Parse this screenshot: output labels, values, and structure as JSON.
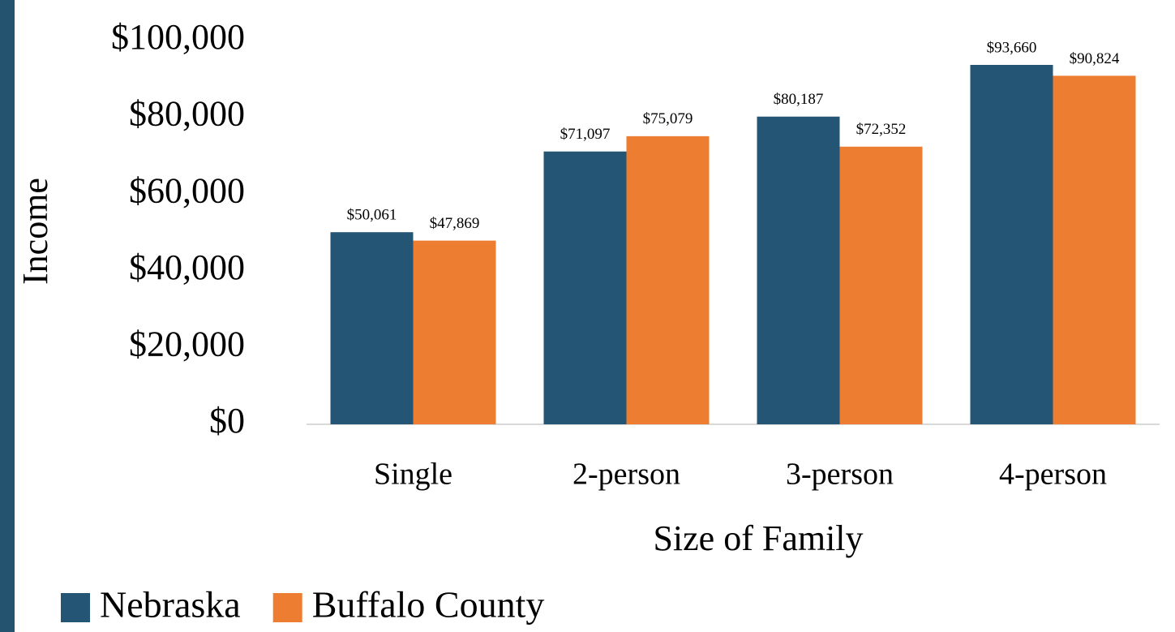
{
  "chart_data": {
    "type": "bar",
    "x_label": "Size of Family",
    "y_label": "Income",
    "categories": [
      "Single",
      "2-person",
      "3-person",
      "4-person"
    ],
    "series": [
      {
        "name": "Nebraska",
        "color": "#255574",
        "values": [
          50061,
          71097,
          80187,
          93660
        ],
        "value_labels": [
          "$50,061",
          "$71,097",
          "$80,187",
          "$93,660"
        ]
      },
      {
        "name": "Buffalo County",
        "color": "#ed7d31",
        "values": [
          47869,
          75079,
          72352,
          90824
        ],
        "value_labels": [
          "$47,869",
          "$75,079",
          "$72,352",
          "$90,824"
        ]
      }
    ],
    "ylim": [
      0,
      100000
    ],
    "yticks": [
      {
        "value": 0,
        "label": "$0"
      },
      {
        "value": 20000,
        "label": "$20,000"
      },
      {
        "value": 40000,
        "label": "$40,000"
      },
      {
        "value": 60000,
        "label": "$60,000"
      },
      {
        "value": 80000,
        "label": "$80,000"
      },
      {
        "value": 100000,
        "label": "$100,000"
      }
    ],
    "grid": false,
    "legend": "bottom"
  }
}
